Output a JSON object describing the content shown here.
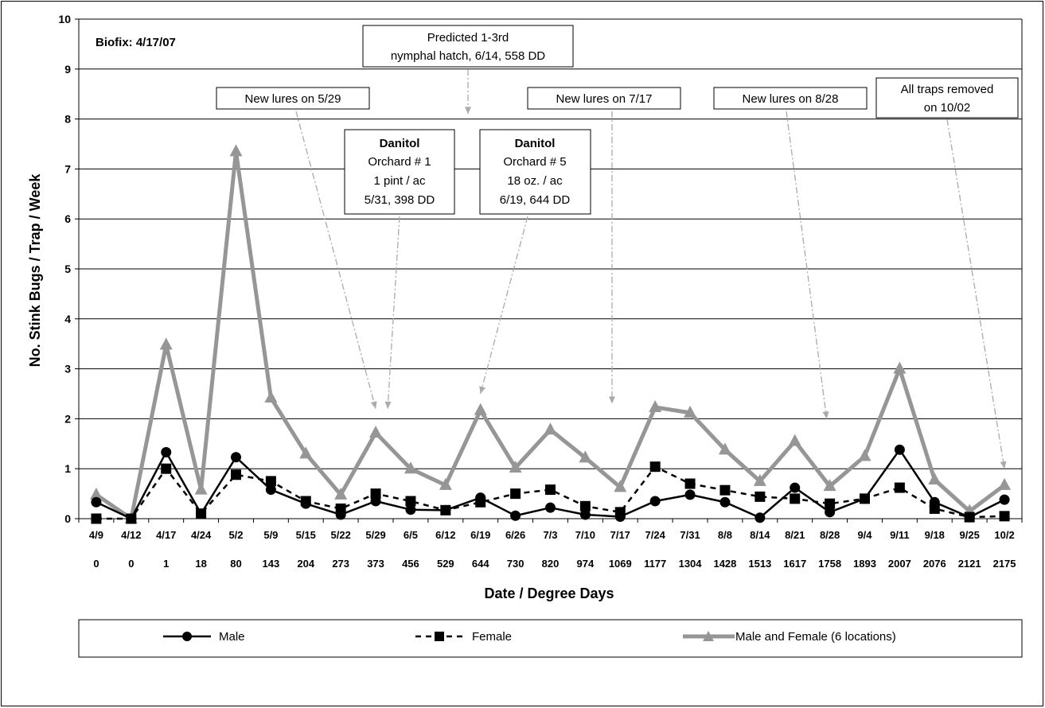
{
  "chart_data": {
    "type": "line",
    "xlabel": "Date / Degree Days",
    "ylabel": "No. Stink Bugs / Trap / Week",
    "ylim": [
      0,
      10
    ],
    "yticks": [
      "0",
      "1",
      "2",
      "3",
      "4",
      "5",
      "6",
      "7",
      "8",
      "9",
      "10"
    ],
    "grid": true,
    "legend_position": "bottom",
    "dates": [
      "4/9",
      "4/12",
      "4/17",
      "4/24",
      "5/2",
      "5/9",
      "5/15",
      "5/22",
      "5/29",
      "6/5",
      "6/12",
      "6/19",
      "6/26",
      "7/3",
      "7/10",
      "7/17",
      "7/24",
      "7/31",
      "8/8",
      "8/14",
      "8/21",
      "8/28",
      "9/4",
      "9/11",
      "9/18",
      "9/25",
      "10/2"
    ],
    "degree_days": [
      "0",
      "0",
      "1",
      "18",
      "80",
      "143",
      "204",
      "273",
      "373",
      "456",
      "529",
      "644",
      "730",
      "820",
      "974",
      "1069",
      "1177",
      "1304",
      "1428",
      "1513",
      "1617",
      "1758",
      "1893",
      "2007",
      "2076",
      "2121",
      "2175"
    ],
    "series": [
      {
        "name": "Male",
        "color": "#000000",
        "style": "solid",
        "marker": "circle",
        "values": [
          0.33,
          0.0,
          1.33,
          0.1,
          1.23,
          0.58,
          0.3,
          0.08,
          0.35,
          0.18,
          0.17,
          0.42,
          0.06,
          0.22,
          0.08,
          0.04,
          0.35,
          0.48,
          0.33,
          0.02,
          0.62,
          0.13,
          0.4,
          1.38,
          0.33,
          0.03,
          0.38
        ]
      },
      {
        "name": "Female",
        "color": "#000000",
        "style": "dashed",
        "marker": "square",
        "values": [
          0.0,
          0.0,
          1.0,
          0.1,
          0.88,
          0.75,
          0.35,
          0.2,
          0.5,
          0.35,
          0.17,
          0.33,
          0.5,
          0.58,
          0.25,
          0.13,
          1.04,
          0.7,
          0.57,
          0.44,
          0.4,
          0.3,
          0.4,
          0.62,
          0.2,
          0.03,
          0.05
        ]
      },
      {
        "name": "Male and Female (6 locations)",
        "color": "#969696",
        "style": "solid",
        "marker": "triangle",
        "values": [
          0.48,
          0.0,
          3.48,
          0.58,
          7.35,
          2.42,
          1.3,
          0.48,
          1.72,
          1.0,
          0.67,
          2.17,
          1.02,
          1.78,
          1.22,
          0.63,
          2.23,
          2.12,
          1.38,
          0.75,
          1.55,
          0.65,
          1.25,
          3.0,
          0.78,
          0.15,
          0.67
        ]
      }
    ],
    "annotations": {
      "biofix": "Biofix: 4/17/07",
      "predicted_line1": "Predicted 1-3rd",
      "predicted_line2": "nymphal hatch, 6/14, 558 DD",
      "lures1": "New lures on 5/29",
      "lures2": "New lures on 7/17",
      "lures3": "New lures on 8/28",
      "removed_line1": "All traps removed",
      "removed_line2": "on 10/02",
      "danitol1": {
        "title": "Danitol",
        "l1": "Orchard # 1",
        "l2": "1 pint / ac",
        "l3": "5/31, 398 DD"
      },
      "danitol2": {
        "title": "Danitol",
        "l1": "Orchard # 5",
        "l2": "18 oz. / ac",
        "l3": "6/19, 644 DD"
      }
    }
  }
}
